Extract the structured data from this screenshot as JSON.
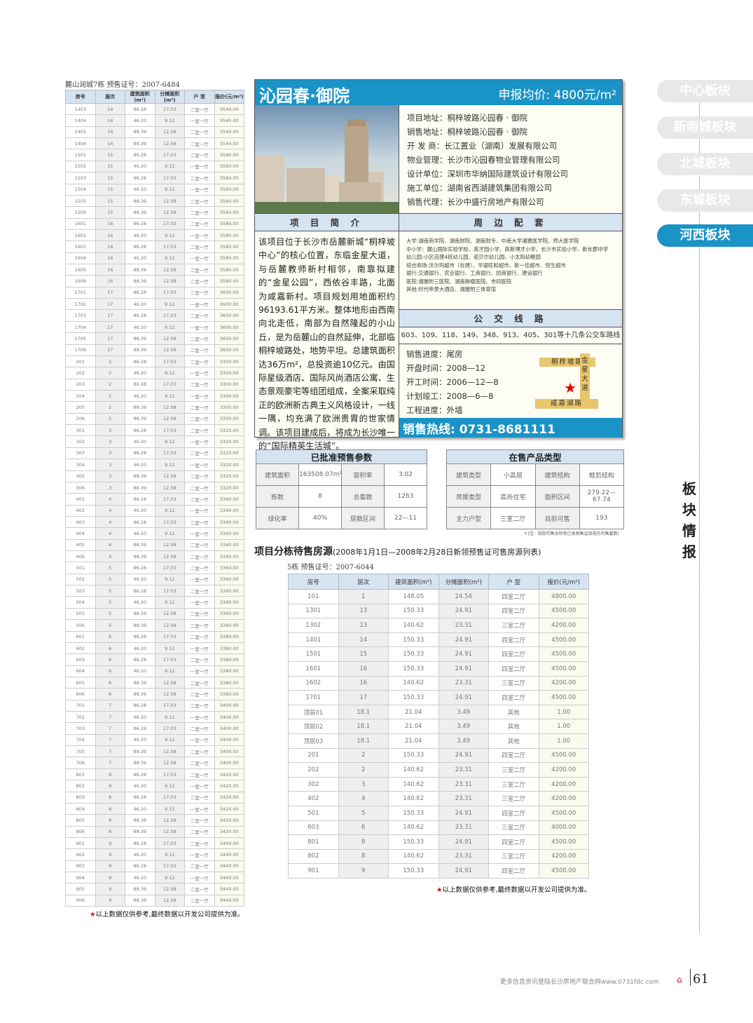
{
  "left_block": {
    "caption": "麓山润城7栋    预售证号：2007-6484",
    "headers": [
      "房号",
      "层次",
      "建筑面积(m²)",
      "分摊面积(m²)",
      "户 型",
      "报价(元/m²)"
    ],
    "rows": [
      [
        "1403",
        "14",
        "86.28",
        "17.03",
        "二室一厅",
        "3540.00"
      ],
      [
        "1404",
        "14",
        "46.20",
        "9.12",
        "一室一厅",
        "3540.00"
      ],
      [
        "1405",
        "14",
        "88.39",
        "12.58",
        "二室一厅",
        "3540.00"
      ],
      [
        "1406",
        "14",
        "88.39",
        "12.58",
        "二室一厅",
        "3540.00"
      ],
      [
        "1501",
        "15",
        "86.28",
        "17.03",
        "二室一厅",
        "3560.00"
      ],
      [
        "1502",
        "15",
        "46.20",
        "9.12",
        "一室一厅",
        "3560.00"
      ],
      [
        "1503",
        "15",
        "86.28",
        "17.03",
        "二室一厅",
        "3560.00"
      ],
      [
        "1504",
        "15",
        "46.20",
        "9.12",
        "一室一厅",
        "3560.00"
      ],
      [
        "1505",
        "15",
        "88.39",
        "12.58",
        "二室一厅",
        "3560.00"
      ],
      [
        "1506",
        "15",
        "88.39",
        "12.58",
        "二室一厅",
        "3560.00"
      ],
      [
        "1601",
        "16",
        "86.28",
        "17.03",
        "二室一厅",
        "3580.00"
      ],
      [
        "1602",
        "16",
        "46.20",
        "9.12",
        "一室一厅",
        "3580.00"
      ],
      [
        "1603",
        "16",
        "86.28",
        "17.03",
        "二室一厅",
        "3580.00"
      ],
      [
        "1604",
        "16",
        "46.20",
        "9.12",
        "一室一厅",
        "3580.00"
      ],
      [
        "1605",
        "16",
        "88.39",
        "12.58",
        "二室一厅",
        "3580.00"
      ],
      [
        "1606",
        "16",
        "88.39",
        "12.58",
        "二室一厅",
        "3580.00"
      ],
      [
        "1701",
        "17",
        "86.28",
        "17.03",
        "二室一厅",
        "3600.00"
      ],
      [
        "1702",
        "17",
        "46.20",
        "9.12",
        "一室一厅",
        "3600.00"
      ],
      [
        "1703",
        "17",
        "86.28",
        "17.03",
        "二室一厅",
        "3600.00"
      ],
      [
        "1704",
        "17",
        "46.20",
        "9.12",
        "一室一厅",
        "3600.00"
      ],
      [
        "1705",
        "17",
        "88.39",
        "12.58",
        "二室一厅",
        "3600.00"
      ],
      [
        "1706",
        "17",
        "88.39",
        "12.58",
        "二室一厅",
        "3600.00"
      ],
      [
        "201",
        "2",
        "86.28",
        "17.03",
        "二室一厅",
        "3300.00"
      ],
      [
        "202",
        "2",
        "46.20",
        "9.12",
        "一室一厅",
        "3300.00"
      ],
      [
        "203",
        "2",
        "86.28",
        "17.03",
        "二室一厅",
        "3300.00"
      ],
      [
        "204",
        "2",
        "46.20",
        "9.12",
        "一室一厅",
        "3300.00"
      ],
      [
        "205",
        "2",
        "88.39",
        "12.58",
        "二室一厅",
        "3300.00"
      ],
      [
        "206",
        "2",
        "88.39",
        "12.58",
        "二室一厅",
        "3300.00"
      ],
      [
        "301",
        "3",
        "86.28",
        "17.03",
        "二室一厅",
        "3320.00"
      ],
      [
        "302",
        "3",
        "46.20",
        "9.12",
        "一室一厅",
        "3320.00"
      ],
      [
        "303",
        "3",
        "86.28",
        "17.03",
        "二室一厅",
        "3320.00"
      ],
      [
        "304",
        "3",
        "46.20",
        "9.12",
        "一室一厅",
        "3320.00"
      ],
      [
        "305",
        "3",
        "88.39",
        "12.58",
        "二室一厅",
        "3320.00"
      ],
      [
        "306",
        "3",
        "88.39",
        "12.58",
        "二室一厅",
        "3320.00"
      ],
      [
        "401",
        "4",
        "86.28",
        "17.03",
        "二室一厅",
        "3340.00"
      ],
      [
        "402",
        "4",
        "46.20",
        "9.12",
        "一室一厅",
        "3340.00"
      ],
      [
        "403",
        "4",
        "86.28",
        "17.03",
        "二室一厅",
        "3340.00"
      ],
      [
        "404",
        "4",
        "46.20",
        "9.12",
        "一室一厅",
        "3340.00"
      ],
      [
        "405",
        "4",
        "88.39",
        "12.58",
        "二室一厅",
        "3340.00"
      ],
      [
        "406",
        "4",
        "88.39",
        "12.58",
        "二室一厅",
        "3340.00"
      ],
      [
        "501",
        "5",
        "86.28",
        "17.03",
        "二室一厅",
        "3360.00"
      ],
      [
        "502",
        "5",
        "46.20",
        "9.12",
        "一室一厅",
        "3360.00"
      ],
      [
        "503",
        "5",
        "86.28",
        "17.03",
        "二室一厅",
        "3360.00"
      ],
      [
        "504",
        "5",
        "46.20",
        "9.12",
        "一室一厅",
        "3360.00"
      ],
      [
        "505",
        "5",
        "88.39",
        "12.58",
        "二室一厅",
        "3360.00"
      ],
      [
        "506",
        "5",
        "88.39",
        "12.58",
        "二室一厅",
        "3360.00"
      ],
      [
        "601",
        "6",
        "86.28",
        "17.03",
        "二室一厅",
        "3380.00"
      ],
      [
        "602",
        "6",
        "46.20",
        "9.12",
        "一室一厅",
        "3380.00"
      ],
      [
        "603",
        "6",
        "86.28",
        "17.03",
        "二室一厅",
        "3380.00"
      ],
      [
        "604",
        "6",
        "46.20",
        "9.12",
        "一室一厅",
        "3380.00"
      ],
      [
        "605",
        "6",
        "88.39",
        "12.58",
        "二室一厅",
        "3380.00"
      ],
      [
        "606",
        "6",
        "88.39",
        "12.58",
        "二室一厅",
        "3380.00"
      ],
      [
        "701",
        "7",
        "86.28",
        "17.03",
        "二室一厅",
        "3400.00"
      ],
      [
        "702",
        "7",
        "46.20",
        "9.12",
        "一室一厅",
        "3400.00"
      ],
      [
        "703",
        "7",
        "86.28",
        "17.03",
        "二室一厅",
        "3400.00"
      ],
      [
        "704",
        "7",
        "46.20",
        "9.12",
        "一室一厅",
        "3400.00"
      ],
      [
        "705",
        "7",
        "88.39",
        "12.58",
        "二室一厅",
        "3400.00"
      ],
      [
        "706",
        "7",
        "88.39",
        "12.58",
        "二室一厅",
        "3400.00"
      ],
      [
        "801",
        "8",
        "86.28",
        "17.03",
        "二室一厅",
        "3420.00"
      ],
      [
        "802",
        "8",
        "46.20",
        "9.12",
        "一室一厅",
        "3420.00"
      ],
      [
        "803",
        "8",
        "86.28",
        "17.03",
        "二室一厅",
        "3420.00"
      ],
      [
        "804",
        "8",
        "46.20",
        "9.12",
        "一室一厅",
        "3420.00"
      ],
      [
        "805",
        "8",
        "88.39",
        "12.58",
        "二室一厅",
        "3420.00"
      ],
      [
        "806",
        "8",
        "88.39",
        "12.58",
        "二室一厅",
        "3420.00"
      ],
      [
        "901",
        "9",
        "86.28",
        "17.03",
        "二室一厅",
        "3440.00"
      ],
      [
        "902",
        "9",
        "46.20",
        "9.12",
        "一室一厅",
        "3440.00"
      ],
      [
        "903",
        "9",
        "86.28",
        "17.03",
        "二室一厅",
        "3440.00"
      ],
      [
        "904",
        "9",
        "46.20",
        "9.12",
        "一室一厅",
        "3440.00"
      ],
      [
        "905",
        "9",
        "88.39",
        "12.58",
        "二室一厅",
        "3440.00"
      ],
      [
        "906",
        "9",
        "88.39",
        "12.58",
        "二室一厅",
        "3440.00"
      ]
    ],
    "footnote_star": "★",
    "footnote": "以上数据仅供参考,最终数据以开发公司提供为准。"
  },
  "project": {
    "title": "沁园春·御院",
    "price_label": "申报均价: 4800元/m²",
    "info": [
      "项目地址：桐梓坡路沁园春 · 御院",
      "销售地址：桐梓坡路沁园春 · 御院",
      "开  发  商：长江置业（湖南）发展有限公司",
      "物业管理：长沙市沁园春物业管理有限公司",
      "设计单位：深圳市华纳国际建筑设计有限公司",
      "施工单位：湖南省西湖建筑集团有限公司",
      "销售代理：长沙中盛行房地产有限公司"
    ],
    "intro_title": "项 目 简 介",
    "intro": "该项目位于长沙市岳麓新城“桐梓坡中心”的核心位置，东临金星大道，与岳麓教师新村相邻，南靠拟建的“金星公园”，西依谷丰路，北面为咸嘉新村。项目规划用地面积约96193.61平方米。整体地形由西南向北走低，南部为自然隆起的小山丘，是为岳麓山的自然延伸，北部临桐梓坡路处，地势平坦。总建筑面积达36万m²，总投资逾10亿元。由国际星级酒店、国际风尚酒店公寓、生态景观豪宅等组团组成，全案采取纯正的欧洲新古典主义风格设计，一线一隅，均充满了欧洲贵胄的世家情调。该项目建成后，将成为长沙唯一的“国际精英生活城”。",
    "surround_title": "周 边 配 套",
    "surround": [
      "大学:湖南商学院、湖南财院、湖南财专、中南大学湘雅医学院、师大医学院",
      "中小学：麓山国际实验学校、英才园小学、高新博才小学、长沙市实验小学、新长郡中学",
      "幼儿园:小区自建4班幼儿园、诺贝尔幼儿园、小太阳幼稚园",
      "综合商场:沃尔玛超市（在建）、华银旺和超市、新一佳超市、恒生超市",
      "银行:交通银行、农业银行、工商银行、招商银行、建设银行",
      "医院:湘雅附三医院、湖南肿瘤医院、市四医院",
      "其他:时代帝景大酒店、湘雅附三体育馆"
    ],
    "bus_title": "公 交 线 路",
    "bus": "603、109、118、149、348、913、405、301等十几条公交车路线",
    "progress": [
      "销售进度：尾房",
      "开盘时间：2008—12",
      "开工时间：2006—12—8",
      "计划竣工：2008—6—8",
      "工程进度：外墙"
    ],
    "map": {
      "road1": "桐梓坡路",
      "road2": "金星大道",
      "road3": "咸嘉湖路"
    },
    "hotline": "销售热线: 0731-8681111"
  },
  "presale": {
    "title": "已批准预售参数",
    "rows": [
      [
        "建筑面积",
        "163508.07m²",
        "容积率",
        "3.02"
      ],
      [
        "栋数",
        "8",
        "总套数",
        "1263"
      ],
      [
        "绿化率",
        "40%",
        "层数区间",
        "22—11"
      ]
    ]
  },
  "products": {
    "title": "在售产品类型",
    "rows": [
      [
        "建筑类型",
        "小高层",
        "建筑结构",
        "框剪结构"
      ],
      [
        "房屋类型",
        "高尚住宅",
        "面积区间",
        "279.22— 67.74"
      ],
      [
        "主力户型",
        "三室二厅",
        "目前可售",
        "193"
      ]
    ],
    "note": "＊(注：目前可售含所有已发预售证目前仍可售套数)"
  },
  "listing": {
    "title": "项目分栋待售房源",
    "subtitle": "(2008年1月1日—2008年2月28日新领预售证可售房源列表)",
    "caption": "5栋    预售证号：2007-6044",
    "headers": [
      "房号",
      "层次",
      "建筑面积(m²)",
      "分摊面积(m²)",
      "户 型",
      "报价(元/m²)"
    ],
    "rows": [
      [
        "101",
        "1",
        "148.05",
        "24.54",
        "四室二厅",
        "4800.00"
      ],
      [
        "1301",
        "13",
        "150.33",
        "24.91",
        "四室二厅",
        "4500.00"
      ],
      [
        "1302",
        "13",
        "140.62",
        "23.31",
        "三室二厅",
        "4200.00"
      ],
      [
        "1401",
        "14",
        "150.33",
        "24.91",
        "四室二厅",
        "4500.00"
      ],
      [
        "1501",
        "15",
        "150.33",
        "24.91",
        "四室二厅",
        "4500.00"
      ],
      [
        "1601",
        "16",
        "150.33",
        "24.91",
        "四室二厅",
        "4500.00"
      ],
      [
        "1602",
        "16",
        "140.62",
        "23.31",
        "三室二厅",
        "4200.00"
      ],
      [
        "1701",
        "17",
        "150.33",
        "24.91",
        "四室二厅",
        "4500.00"
      ],
      [
        "顶层01",
        "18.1",
        "21.04",
        "3.49",
        "其他",
        "1.00"
      ],
      [
        "顶层02",
        "18.1",
        "21.04",
        "3.49",
        "其他",
        "1.00"
      ],
      [
        "顶层03",
        "18.1",
        "21.04",
        "3.49",
        "其他",
        "1.00"
      ],
      [
        "201",
        "2",
        "150.33",
        "24.91",
        "四室二厅",
        "4500.00"
      ],
      [
        "202",
        "2",
        "140.62",
        "23.31",
        "三室二厅",
        "4200.00"
      ],
      [
        "302",
        "3",
        "140.62",
        "23.31",
        "三室二厅",
        "4200.00"
      ],
      [
        "402",
        "4",
        "140.62",
        "23.31",
        "三室二厅",
        "4200.00"
      ],
      [
        "501",
        "5",
        "150.33",
        "24.91",
        "四室二厅",
        "4500.00"
      ],
      [
        "603",
        "6",
        "140.62",
        "23.31",
        "三室二厅",
        "4000.00"
      ],
      [
        "801",
        "8",
        "150.33",
        "24.91",
        "四室二厅",
        "4500.00"
      ],
      [
        "802",
        "8",
        "140.62",
        "23.31",
        "三室二厅",
        "4200.00"
      ],
      [
        "901",
        "9",
        "150.33",
        "24.91",
        "四室二厅",
        "4500.00"
      ]
    ],
    "footnote_star": "★",
    "footnote": "以上数据仅供参考,最终数据以开发公司提供为准。"
  },
  "sidebar": {
    "tabs": [
      "中心板块",
      "新南城板块",
      "北城板块",
      "东城板块",
      "河西板块"
    ],
    "active": 4,
    "section": "板块情报"
  },
  "footer": {
    "text": "更多信息资讯登陆长沙房地产联合网www.0731fdc.com",
    "page": "61"
  },
  "colors": {
    "accent": "#1a93c7",
    "header_bg": "#d6e4f2",
    "road": "#e9c56c",
    "star": "#e00000"
  }
}
